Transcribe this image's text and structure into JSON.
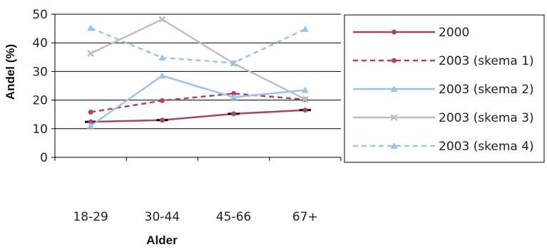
{
  "chart_data": {
    "type": "line",
    "xlabel": "Alder",
    "ylabel": "Andel (%)",
    "categories": [
      "18-29",
      "30-44",
      "45-66",
      "67+"
    ],
    "ylim": [
      0,
      50
    ],
    "yticks": [
      0,
      10,
      20,
      30,
      40,
      50
    ],
    "grid": true,
    "legend_position": "right",
    "series": [
      {
        "name": "2000",
        "values": [
          12.4,
          13.0,
          15.2,
          16.5
        ],
        "color": "#a8446e",
        "dash": "solid",
        "marker": "circle",
        "error_caps": true
      },
      {
        "name": "2003 (skema 1)",
        "values": [
          15.8,
          19.8,
          22.3,
          20.2
        ],
        "color": "#a8446e",
        "dash": "dashed",
        "marker": "circle",
        "error_caps": false
      },
      {
        "name": "2003 (skema 2)",
        "values": [
          11.0,
          28.5,
          21.0,
          23.5
        ],
        "color": "#9dc3e6",
        "dash": "solid",
        "marker": "triangle",
        "error_caps": false
      },
      {
        "name": "2003 (skema 3)",
        "values": [
          36.3,
          48.2,
          32.8,
          20.3
        ],
        "color": "#bfbfbf",
        "dash": "solid",
        "marker": "x",
        "error_caps": false
      },
      {
        "name": "2003 (skema 4)",
        "values": [
          45.2,
          34.8,
          33.0,
          44.8
        ],
        "color": "#9dc3e6",
        "dash": "dashed",
        "marker": "triangle",
        "error_caps": false
      }
    ]
  }
}
